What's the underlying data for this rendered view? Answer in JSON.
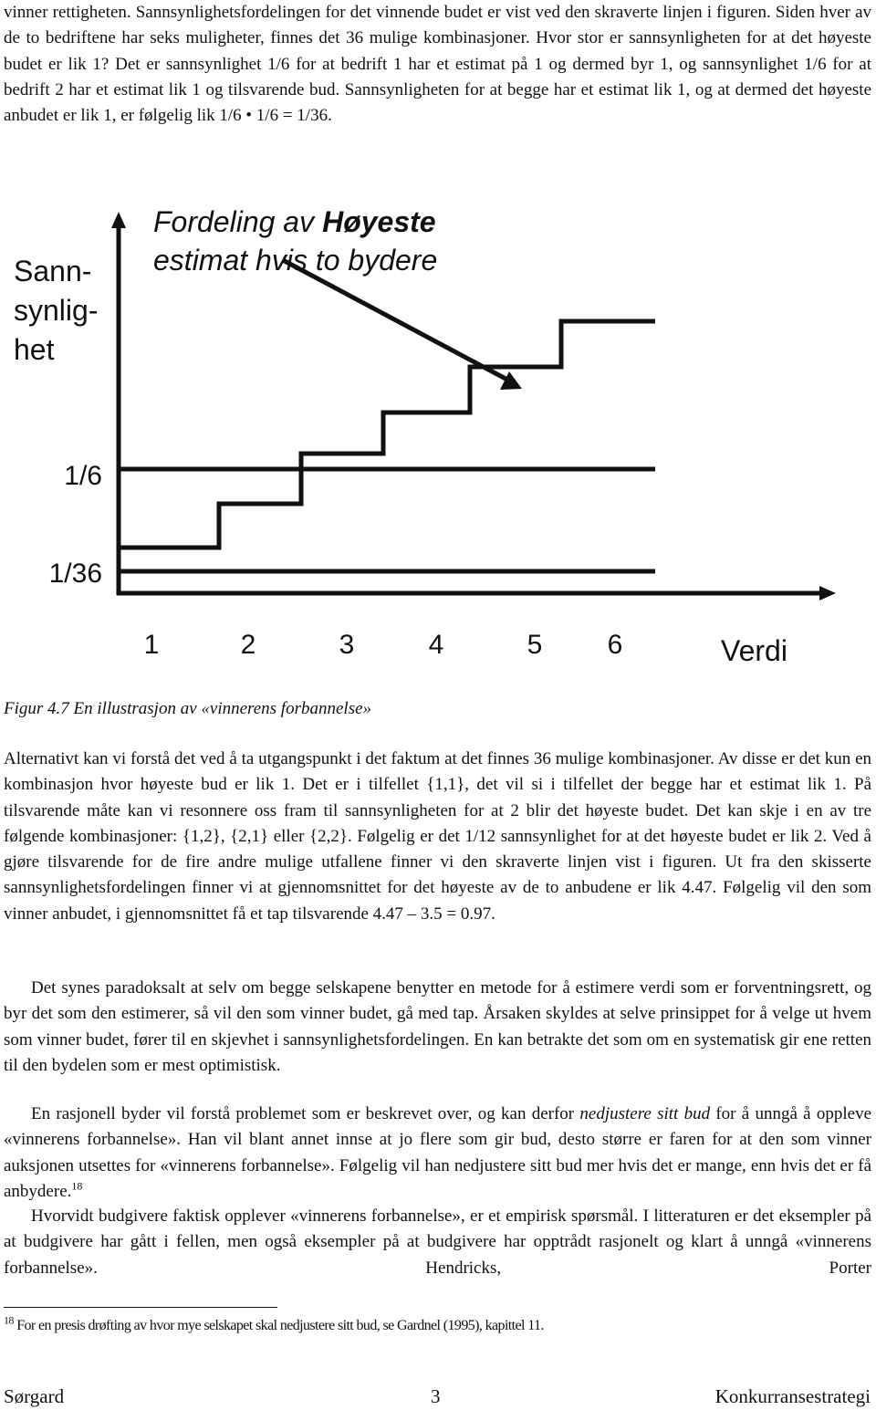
{
  "paragraph_1": "vinner rettigheten. Sannsynlighetsfordelingen for det vinnende budet er vist ved den skraverte linjen i figuren. Siden hver av de to bedriftene har seks muligheter, finnes det 36 mulige kombinasjoner. Hvor stor er sannsynligheten for at det høyeste budet er lik 1? Det er sannsynlighet 1/6 for at bedrift 1 har et estimat på 1 og dermed byr 1, og sannsynlighet 1/6 for at bedrift 2 har et estimat lik 1 og tilsvarende bud. Sannsynligheten for at begge har et estimat lik 1, og at dermed det høyeste anbudet er lik 1, er følgelig lik 1/6 • 1/6 = 1/36.",
  "figure": {
    "y_label": [
      "Sann-",
      "synlig-",
      "het"
    ],
    "title": {
      "line_1": "Fordeling av",
      "line_1_emphasis": "Høyeste",
      "line_2": "estimat hvis to bydere"
    },
    "y_ticks": [
      "1/6",
      "1/36"
    ],
    "x_ticks": [
      "1",
      "2",
      "3",
      "4",
      "5",
      "6"
    ],
    "x_label": "Verdi",
    "caption": "Figur 4.7 En illustrasjon av «vinnerens forbannelse»"
  },
  "paragraph_2": "Alternativt kan vi forstå det ved å ta utgangspunkt i det faktum at det finnes 36 mulige kombinasjoner. Av disse er det kun en kombinasjon hvor høyeste bud er lik 1. Det er i tilfellet {1,1}, det vil si i tilfellet der begge har et estimat lik 1. På tilsvarende måte kan vi resonnere oss fram til sannsynligheten for at 2 blir det høyeste budet. Det kan skje i en av tre følgende kombinasjoner: {1,2}, {2,1} eller {2,2}. Følgelig er det 1/12 sannsynlighet for at det høyeste budet er lik 2. Ved å gjøre tilsvarende for de fire andre mulige utfallene finner vi den skraverte linjen vist i figuren. Ut fra den skisserte sannsynlighetsfordelingen finner vi at gjennomsnittet for det høyeste av de to anbudene er lik 4.47. Følgelig vil den som vinner anbudet, i gjennomsnittet få et tap tilsvarende 4.47 – 3.5 = 0.97.",
  "paragraph_3": "Det synes paradoksalt at selv om begge selskapene benytter en metode for å estimere verdi som er forventningsrett, og byr det som den estimerer, så vil den som vinner budet, gå med tap. Årsaken skyldes at selve prinsippet for å velge ut hvem som vinner budet, fører til en skjevhet i sannsynlighetsfordelingen. En kan betrakte det som om en systematisk gir ene retten til den bydelen som er mest optimistisk.",
  "paragraph_4": {
    "before": "En rasjonell byder vil forstå problemet som er beskrevet over, og kan derfor",
    "emphasis": "nedjustere sitt bud",
    "after": "for å unngå å oppleve «vinnerens forbannelse». Han vil blant annet innse at jo flere som gir bud, desto større er faren for at den som vinner auksjonen utsettes for «vinnerens forbannelse». Følgelig vil han nedjustere sitt bud mer hvis det er mange, enn hvis det er få anbydere.",
    "footnote_ref": "18"
  },
  "paragraph_5": "Hvorvidt budgivere faktisk opplever «vinnerens forbannelse», er et empirisk spørsmål. I litteraturen er det eksempler på at budgivere har gått i fellen, men også eksempler på at budgivere har opptrådt rasjonelt og klart å unngå «vinnerens forbannelse». Hendricks, Porter",
  "footnote": {
    "number": "18",
    "text": "For en presis drøfting av hvor mye selskapet skal nedjustere sitt bud, se Gardnel (1995), kapittel 11."
  },
  "footer": {
    "left": "Sørgard",
    "center": "3",
    "right": "Konkurransestrategi"
  }
}
